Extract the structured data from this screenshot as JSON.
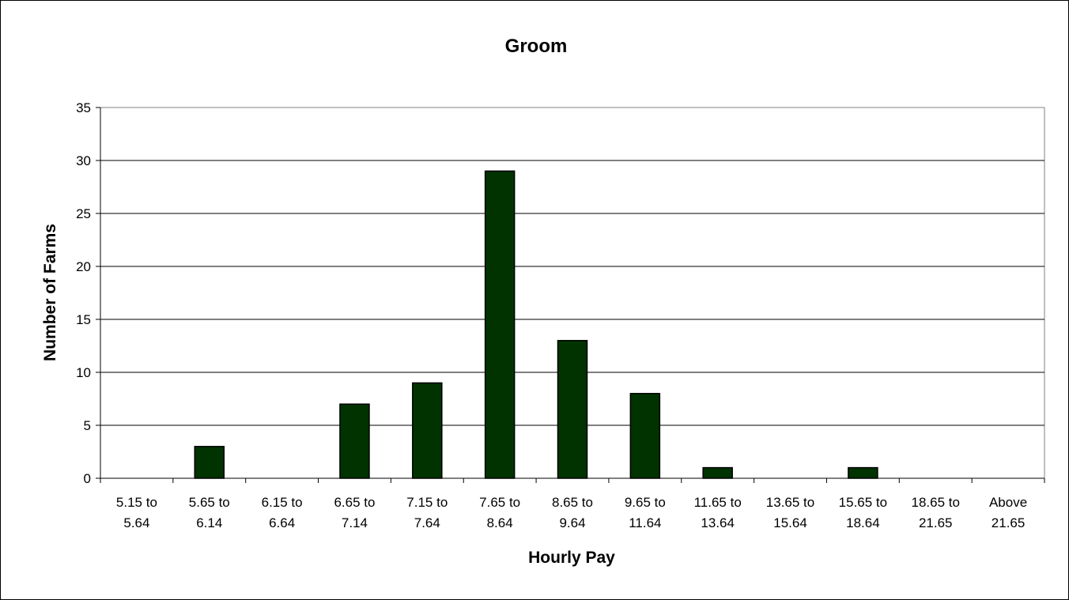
{
  "chart_data": {
    "type": "bar",
    "title": "Groom",
    "xlabel": "Hourly Pay",
    "ylabel": "Number of Farms",
    "categories": [
      "5.15 to 5.64",
      "5.65 to 6.14",
      "6.15 to 6.64",
      "6.65 to 7.14",
      "7.15 to 7.64",
      "7.65 to 8.64",
      "8.65 to 9.64",
      "9.65 to 11.64",
      "11.65 to 13.64",
      "13.65 to 15.64",
      "15.65 to 18.64",
      "18.65 to 21.65",
      "Above 21.65"
    ],
    "category_lines": [
      [
        "5.15 to",
        "5.64"
      ],
      [
        "5.65 to",
        "6.14"
      ],
      [
        "6.15 to",
        "6.64"
      ],
      [
        "6.65 to",
        "7.14"
      ],
      [
        "7.15 to",
        "7.64"
      ],
      [
        "7.65 to",
        "8.64"
      ],
      [
        "8.65 to",
        "9.64"
      ],
      [
        "9.65 to",
        "11.64"
      ],
      [
        "11.65 to",
        "13.64"
      ],
      [
        "13.65 to",
        "15.64"
      ],
      [
        "15.65 to",
        "18.64"
      ],
      [
        "18.65 to",
        "21.65"
      ],
      [
        "Above",
        "21.65"
      ]
    ],
    "values": [
      0,
      3,
      0,
      7,
      9,
      29,
      13,
      8,
      1,
      0,
      1,
      0,
      0
    ],
    "ylim": [
      0,
      35
    ],
    "yticks": [
      0,
      5,
      10,
      15,
      20,
      25,
      30,
      35
    ],
    "grid": true,
    "legend": "none",
    "bar_color": "#003300"
  }
}
